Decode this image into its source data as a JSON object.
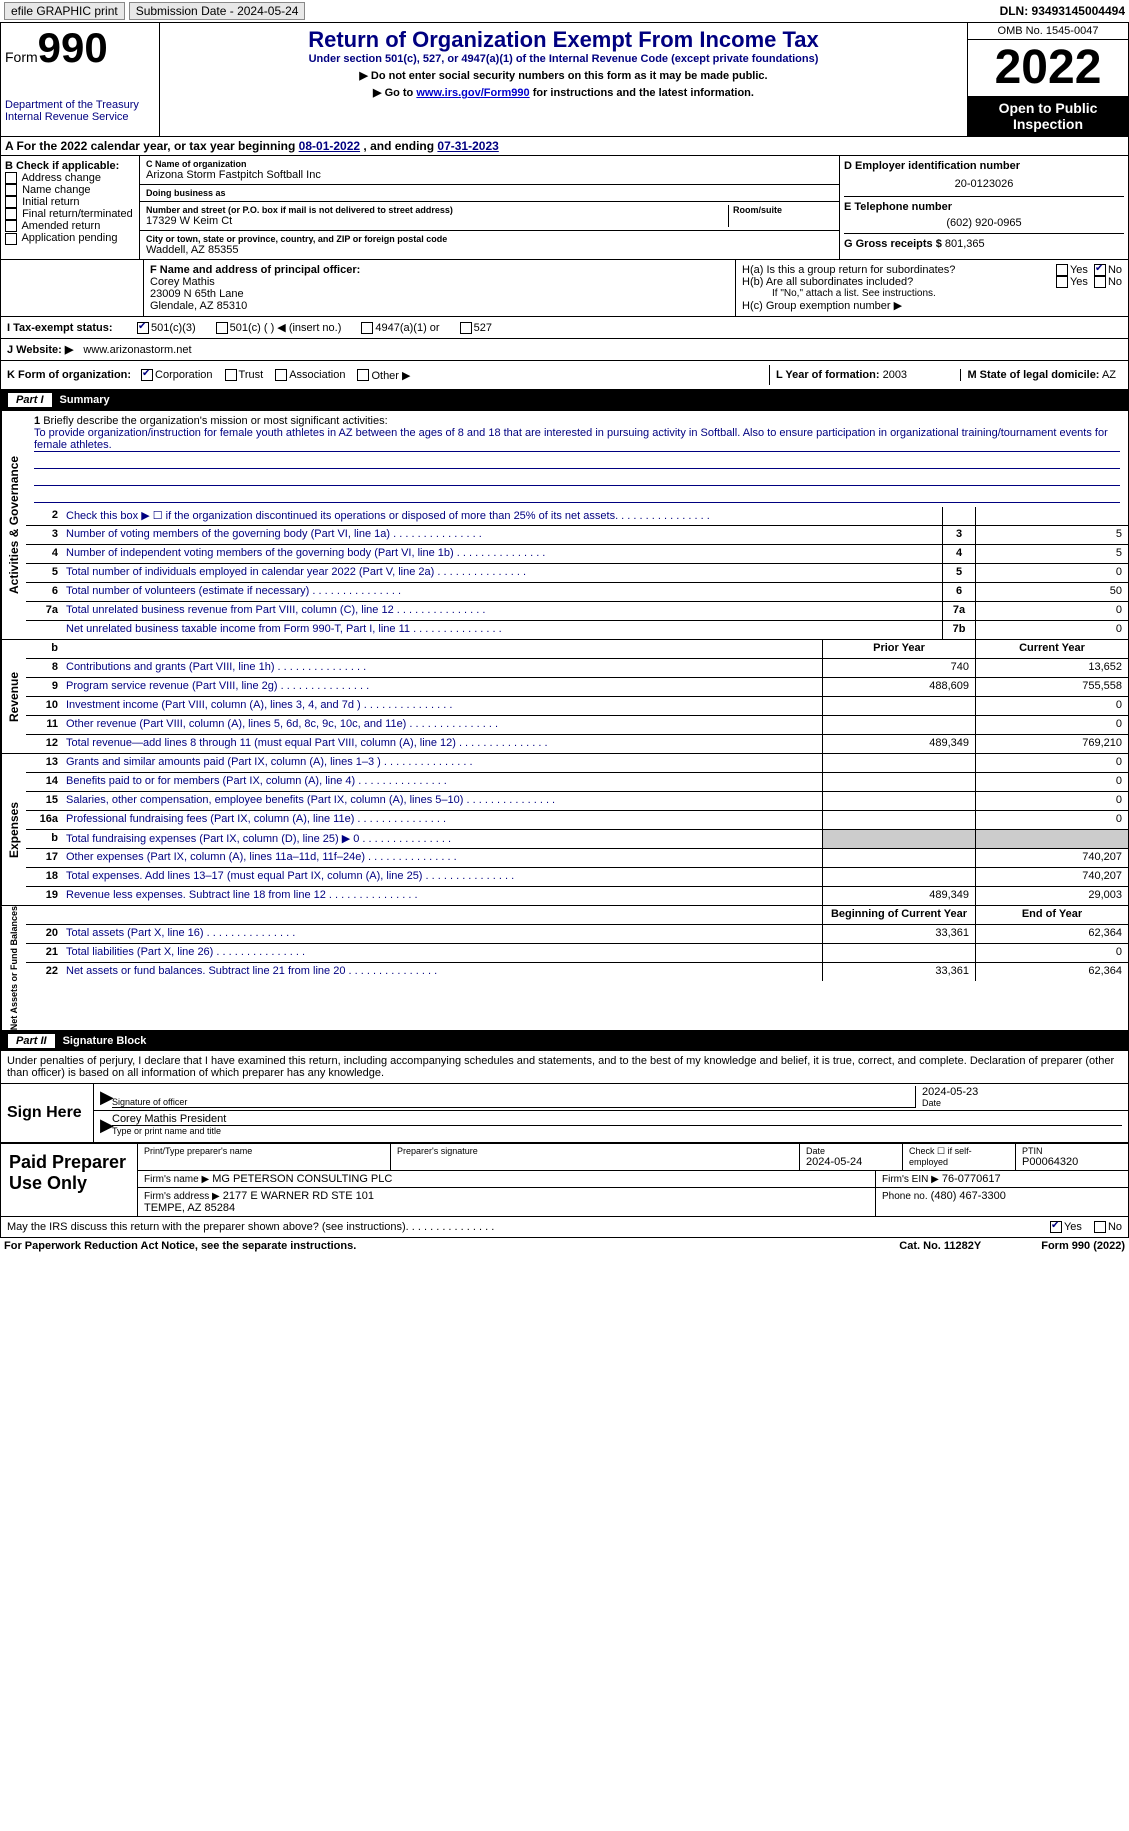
{
  "topbar": {
    "efile": "efile GRAPHIC print",
    "submission": "Submission Date - 2024-05-24",
    "dln": "DLN: 93493145004494"
  },
  "header": {
    "form_word": "Form",
    "form_num": "990",
    "title": "Return of Organization Exempt From Income Tax",
    "sub1": "Under section 501(c), 527, or 4947(a)(1) of the Internal Revenue Code (except private foundations)",
    "sub2": "▶ Do not enter social security numbers on this form as it may be made public.",
    "sub3_pre": "▶ Go to ",
    "sub3_link": "www.irs.gov/Form990",
    "sub3_post": " for instructions and the latest information.",
    "dept": "Department of the Treasury\nInternal Revenue Service",
    "omb": "OMB No. 1545-0047",
    "year": "2022",
    "open": "Open to Public Inspection"
  },
  "sectionA": {
    "text_pre": "A For the 2022 calendar year, or tax year beginning ",
    "begin": "08-01-2022",
    "mid": " , and ending ",
    "end": "07-31-2023"
  },
  "boxB": {
    "title": "B Check if applicable:",
    "items": [
      "Address change",
      "Name change",
      "Initial return",
      "Final return/terminated",
      "Amended return",
      "Application pending"
    ]
  },
  "boxC": {
    "name_label": "C Name of organization",
    "name": "Arizona Storm Fastpitch Softball Inc",
    "dba_label": "Doing business as",
    "dba": "",
    "addr_label": "Number and street (or P.O. box if mail is not delivered to street address)",
    "addr": "17329 W Keim Ct",
    "room_label": "Room/suite",
    "city_label": "City or town, state or province, country, and ZIP or foreign postal code",
    "city": "Waddell, AZ  85355"
  },
  "boxD": {
    "ein_label": "D Employer identification number",
    "ein": "20-0123026",
    "phone_label": "E Telephone number",
    "phone": "(602) 920-0965",
    "gross_label": "G Gross receipts $",
    "gross": "801,365"
  },
  "boxF": {
    "label": "F Name and address of principal officer:",
    "name": "Corey Mathis",
    "addr1": "23009 N 65th Lane",
    "addr2": "Glendale, AZ  85310"
  },
  "boxH": {
    "ha_label": "H(a)  Is this a group return for subordinates?",
    "hb_label": "H(b)  Are all subordinates included?",
    "hb_note": "If \"No,\" attach a list. See instructions.",
    "hc_label": "H(c)  Group exemption number ▶",
    "yes": "Yes",
    "no": "No"
  },
  "taxStatus": {
    "label": "I  Tax-exempt status:",
    "o1": "501(c)(3)",
    "o2": "501(c) (   ) ◀ (insert no.)",
    "o3": "4947(a)(1) or",
    "o4": "527"
  },
  "website": {
    "label": "J  Website: ▶",
    "value": "www.arizonastorm.net"
  },
  "formOrg": {
    "label": "K Form of organization:",
    "o1": "Corporation",
    "o2": "Trust",
    "o3": "Association",
    "o4": "Other ▶",
    "l_label": "L Year of formation:",
    "l_val": "2003",
    "m_label": "M State of legal domicile:",
    "m_val": "AZ"
  },
  "part1": {
    "num": "Part I",
    "title": "Summary"
  },
  "mission": {
    "num": "1",
    "label": "Briefly describe the organization's mission or most significant activities:",
    "text": "To provide organization/instruction for female youth athletes in AZ between the ages of 8 and 18 that are interested in pursuing activity in Softball. Also to ensure participation in organizational training/tournament events for female athletes."
  },
  "gov_rows": [
    {
      "num": "2",
      "label": "Check this box ▶ ☐ if the organization discontinued its operations or disposed of more than 25% of its net assets.",
      "box": "",
      "val": ""
    },
    {
      "num": "3",
      "label": "Number of voting members of the governing body (Part VI, line 1a)",
      "box": "3",
      "val": "5"
    },
    {
      "num": "4",
      "label": "Number of independent voting members of the governing body (Part VI, line 1b)",
      "box": "4",
      "val": "5"
    },
    {
      "num": "5",
      "label": "Total number of individuals employed in calendar year 2022 (Part V, line 2a)",
      "box": "5",
      "val": "0"
    },
    {
      "num": "6",
      "label": "Total number of volunteers (estimate if necessary)",
      "box": "6",
      "val": "50"
    },
    {
      "num": "7a",
      "label": "Total unrelated business revenue from Part VIII, column (C), line 12",
      "box": "7a",
      "val": "0"
    },
    {
      "num": "",
      "label": "Net unrelated business taxable income from Form 990-T, Part I, line 11",
      "box": "7b",
      "val": "0"
    }
  ],
  "rev_header": {
    "prior": "Prior Year",
    "current": "Current Year"
  },
  "rev_rows": [
    {
      "num": "8",
      "label": "Contributions and grants (Part VIII, line 1h)",
      "p": "740",
      "c": "13,652"
    },
    {
      "num": "9",
      "label": "Program service revenue (Part VIII, line 2g)",
      "p": "488,609",
      "c": "755,558"
    },
    {
      "num": "10",
      "label": "Investment income (Part VIII, column (A), lines 3, 4, and 7d )",
      "p": "",
      "c": "0"
    },
    {
      "num": "11",
      "label": "Other revenue (Part VIII, column (A), lines 5, 6d, 8c, 9c, 10c, and 11e)",
      "p": "",
      "c": "0"
    },
    {
      "num": "12",
      "label": "Total revenue—add lines 8 through 11 (must equal Part VIII, column (A), line 12)",
      "p": "489,349",
      "c": "769,210"
    }
  ],
  "exp_rows": [
    {
      "num": "13",
      "label": "Grants and similar amounts paid (Part IX, column (A), lines 1–3 )",
      "p": "",
      "c": "0"
    },
    {
      "num": "14",
      "label": "Benefits paid to or for members (Part IX, column (A), line 4)",
      "p": "",
      "c": "0"
    },
    {
      "num": "15",
      "label": "Salaries, other compensation, employee benefits (Part IX, column (A), lines 5–10)",
      "p": "",
      "c": "0"
    },
    {
      "num": "16a",
      "label": "Professional fundraising fees (Part IX, column (A), line 11e)",
      "p": "",
      "c": "0"
    },
    {
      "num": "b",
      "label": "Total fundraising expenses (Part IX, column (D), line 25) ▶ 0",
      "p": "grey",
      "c": "grey"
    },
    {
      "num": "17",
      "label": "Other expenses (Part IX, column (A), lines 11a–11d, 11f–24e)",
      "p": "",
      "c": "740,207"
    },
    {
      "num": "18",
      "label": "Total expenses. Add lines 13–17 (must equal Part IX, column (A), line 25)",
      "p": "",
      "c": "740,207"
    },
    {
      "num": "19",
      "label": "Revenue less expenses. Subtract line 18 from line 12",
      "p": "489,349",
      "c": "29,003"
    }
  ],
  "net_header": {
    "begin": "Beginning of Current Year",
    "end": "End of Year"
  },
  "net_rows": [
    {
      "num": "20",
      "label": "Total assets (Part X, line 16)",
      "p": "33,361",
      "c": "62,364"
    },
    {
      "num": "21",
      "label": "Total liabilities (Part X, line 26)",
      "p": "",
      "c": "0"
    },
    {
      "num": "22",
      "label": "Net assets or fund balances. Subtract line 21 from line 20",
      "p": "33,361",
      "c": "62,364"
    }
  ],
  "part2": {
    "num": "Part II",
    "title": "Signature Block"
  },
  "penalty": "Under penalties of perjury, I declare that I have examined this return, including accompanying schedules and statements, and to the best of my knowledge and belief, it is true, correct, and complete. Declaration of preparer (other than officer) is based on all information of which preparer has any knowledge.",
  "sign": {
    "here": "Sign Here",
    "sig_label": "Signature of officer",
    "date": "2024-05-23",
    "date_label": "Date",
    "name": "Corey Mathis  President",
    "name_label": "Type or print name and title"
  },
  "preparer": {
    "title": "Paid Preparer Use Only",
    "print_label": "Print/Type preparer's name",
    "print_val": "",
    "sig_label": "Preparer's signature",
    "date_label": "Date",
    "date_val": "2024-05-24",
    "check_label": "Check ☐ if self-employed",
    "ptin_label": "PTIN",
    "ptin_val": "P00064320",
    "firm_name_label": "Firm's name    ▶",
    "firm_name": "MG PETERSON CONSULTING PLC",
    "firm_ein_label": "Firm's EIN ▶",
    "firm_ein": "76-0770617",
    "firm_addr_label": "Firm's address ▶",
    "firm_addr": "2177 E WARNER RD STE 101\nTEMPE, AZ  85284",
    "phone_label": "Phone no.",
    "phone": "(480) 467-3300"
  },
  "discuss": {
    "text": "May the IRS discuss this return with the preparer shown above? (see instructions)",
    "yes": "Yes",
    "no": "No"
  },
  "footer": {
    "left": "For Paperwork Reduction Act Notice, see the separate instructions.",
    "mid": "Cat. No. 11282Y",
    "right": "Form 990 (2022)"
  },
  "vtabs": {
    "gov": "Activities & Governance",
    "rev": "Revenue",
    "exp": "Expenses",
    "net": "Net Assets or Fund Balances"
  }
}
